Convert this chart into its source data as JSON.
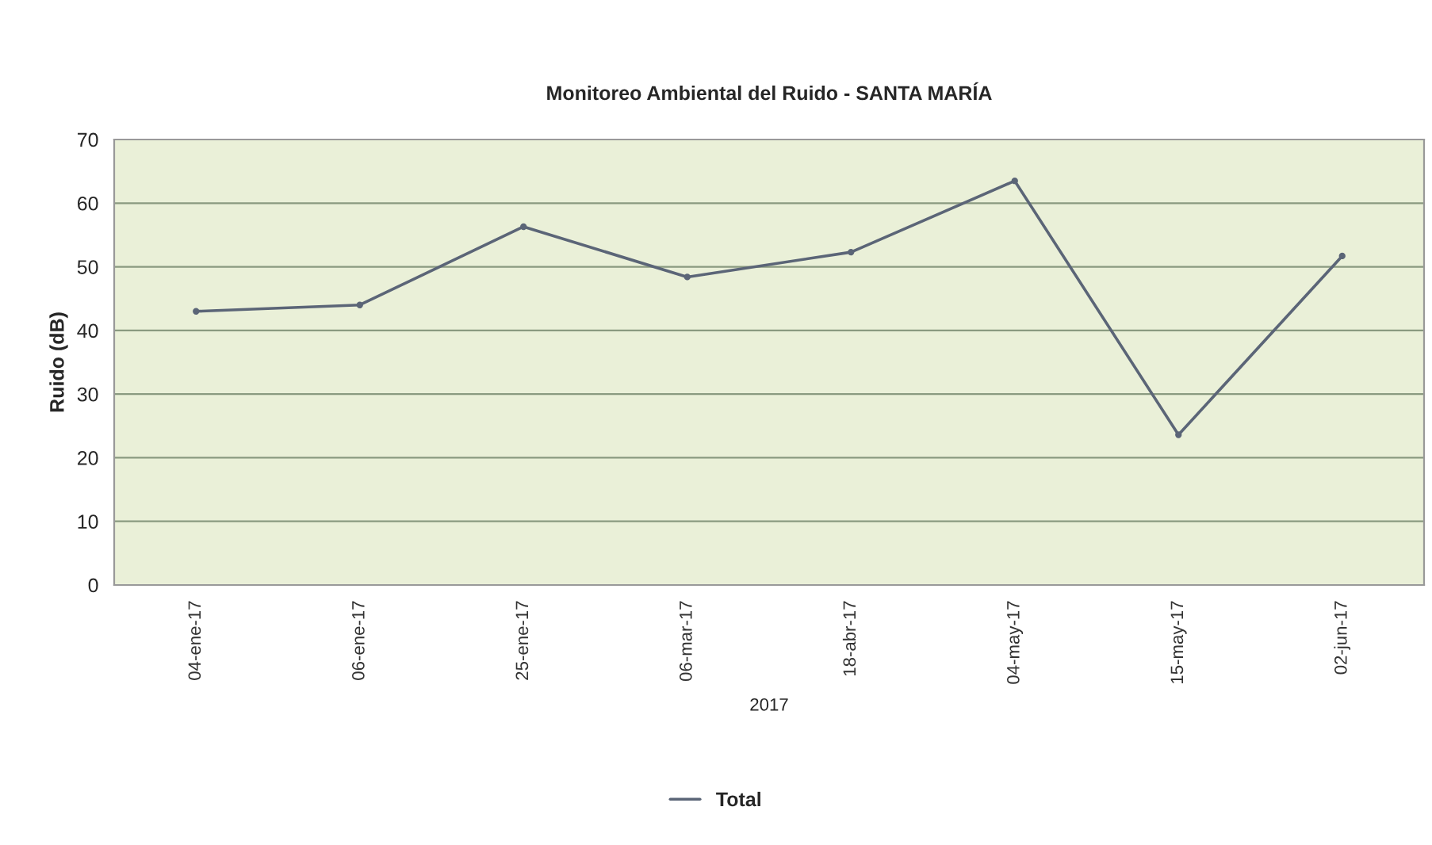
{
  "chart_data": {
    "type": "line",
    "title": "Monitoreo Ambiental del Ruido - SANTA MARÍA",
    "xlabel": "2017",
    "ylabel": "Ruido (dB)",
    "categories": [
      "04-ene-17",
      "06-ene-17",
      "25-ene-17",
      "06-mar-17",
      "18-abr-17",
      "04-may-17",
      "15-may-17",
      "02-jun-17"
    ],
    "series": [
      {
        "name": "Total",
        "color": "#5b6577",
        "values": [
          43,
          44,
          56.3,
          48.4,
          52.3,
          63.5,
          23.6,
          51.7
        ]
      }
    ],
    "ylim": [
      0,
      70
    ],
    "yticks": [
      0,
      10,
      20,
      30,
      40,
      50,
      60,
      70
    ],
    "grid": "y",
    "legend": "bottom",
    "marker": "circle"
  }
}
